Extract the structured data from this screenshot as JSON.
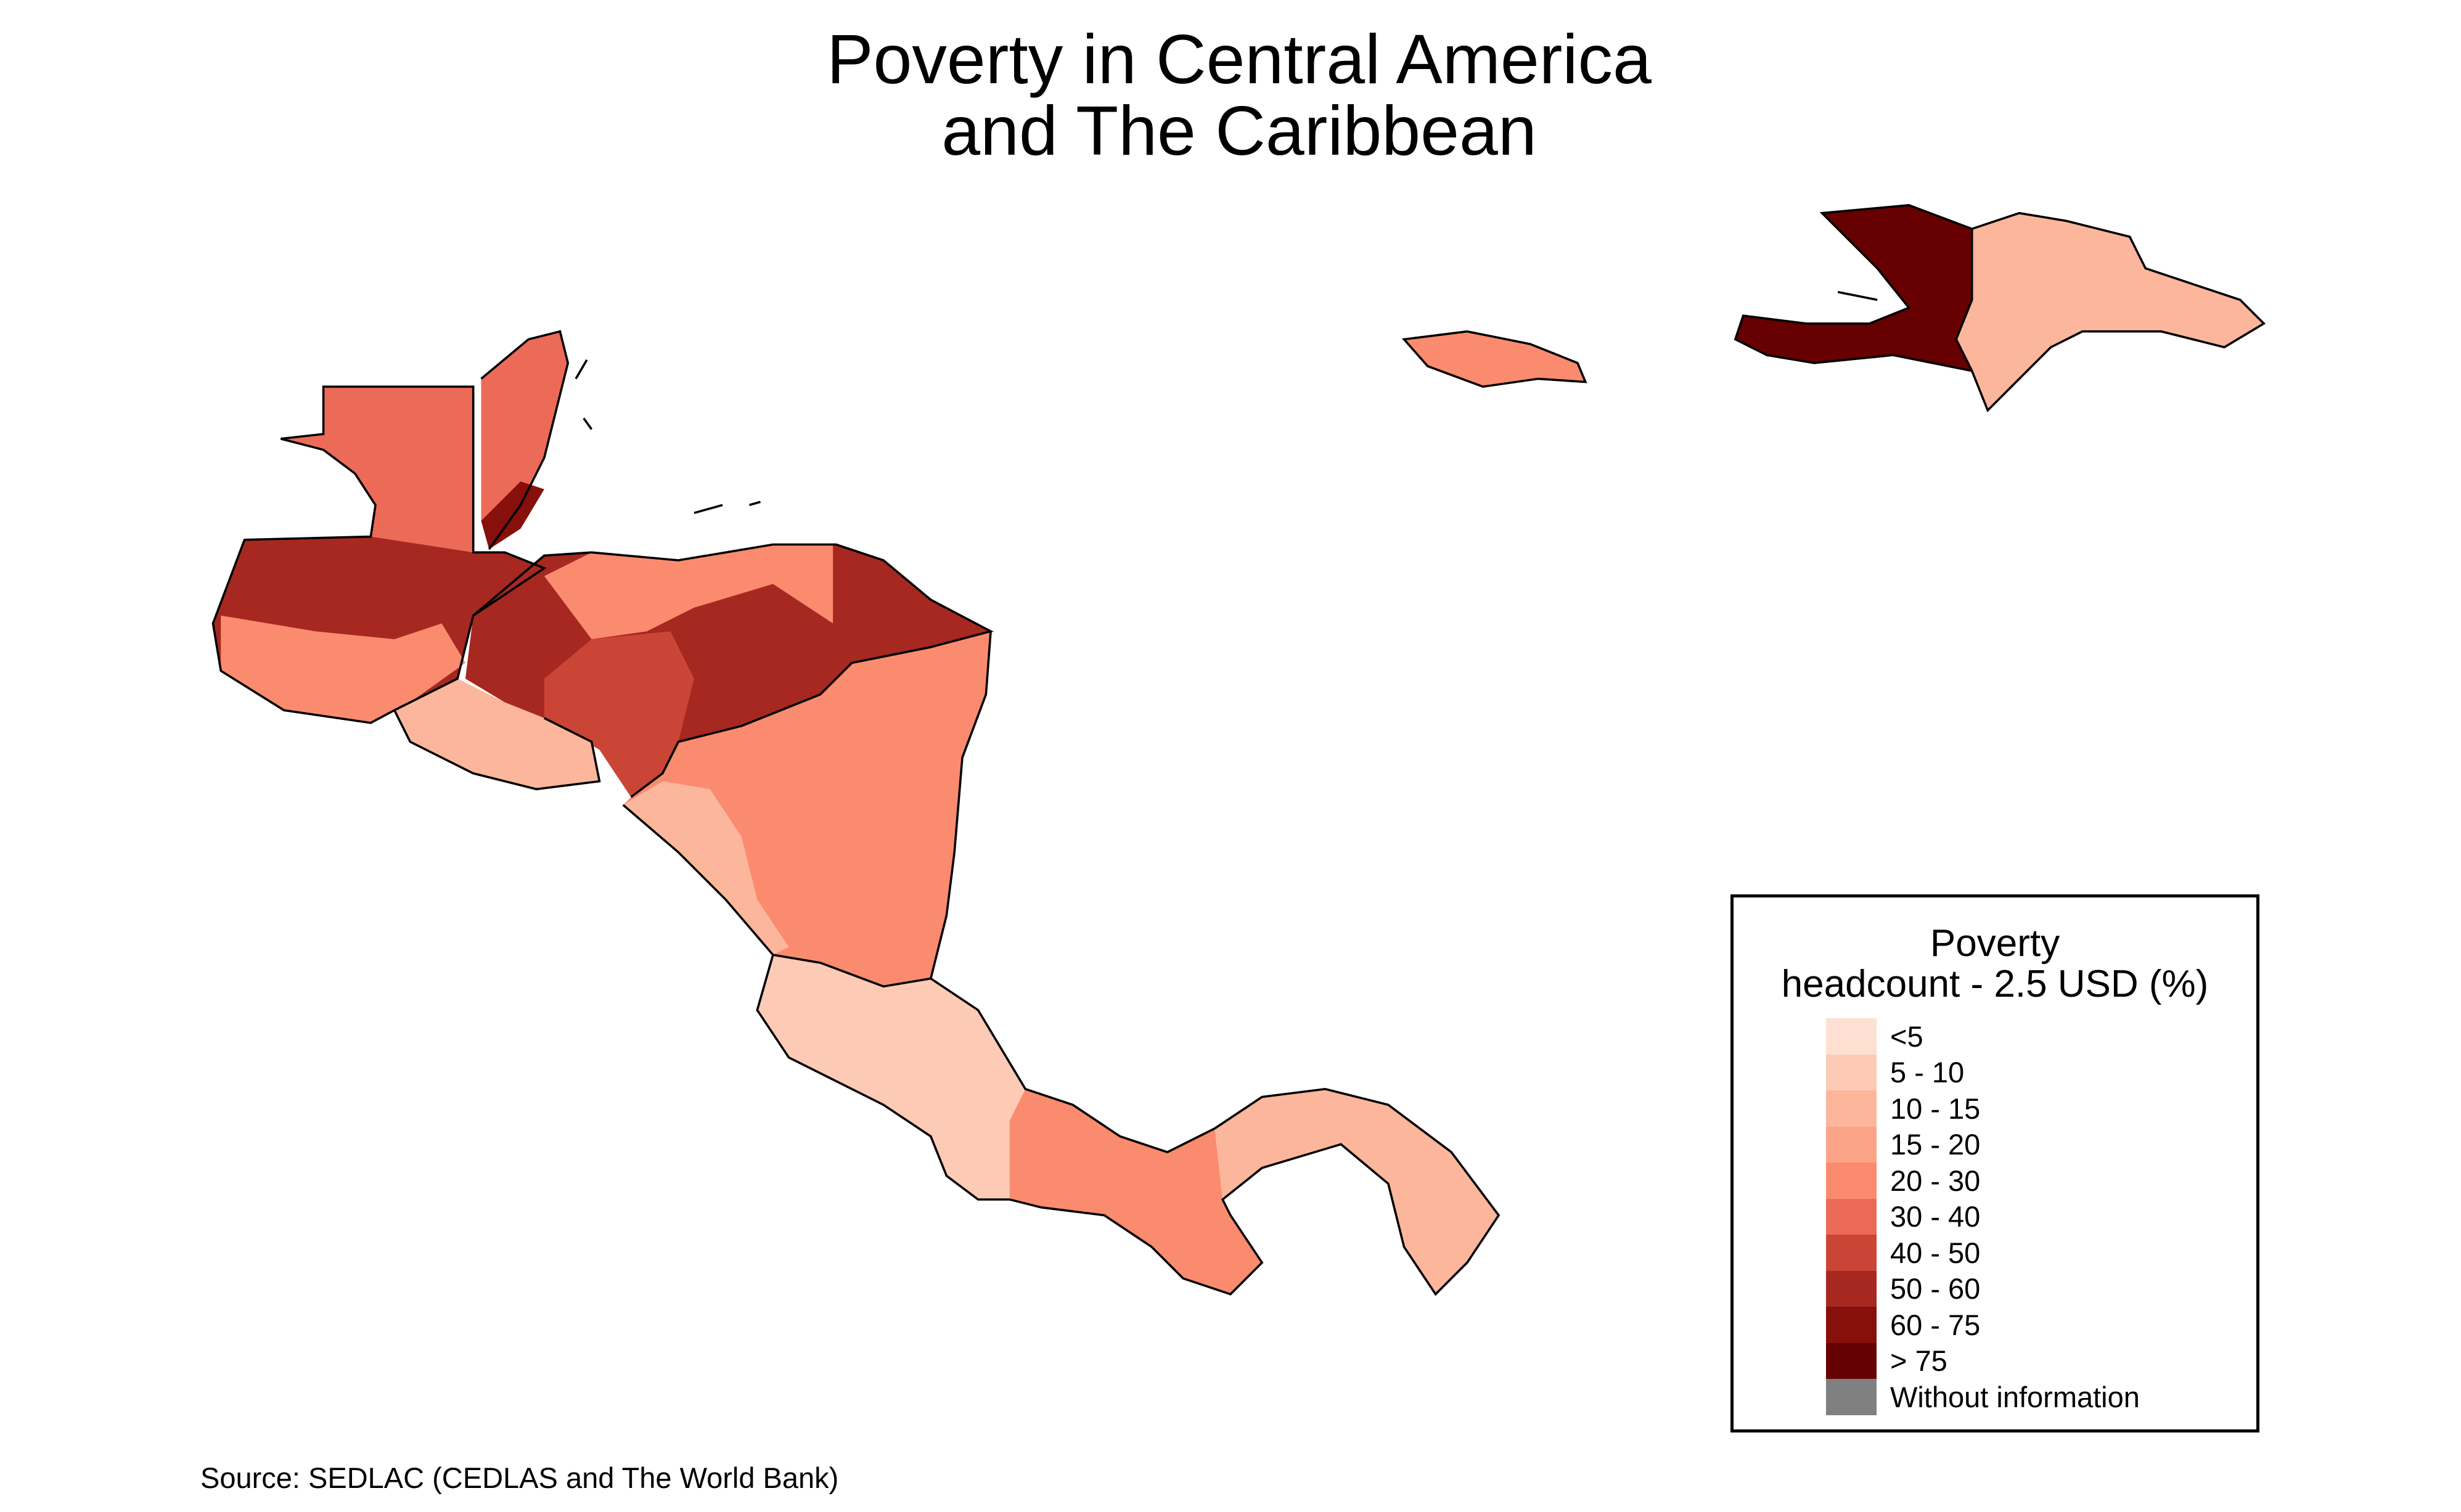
{
  "title_line1": "Poverty in Central America",
  "title_line2": "and The Caribbean",
  "source": "Source: SEDLAC (CEDLAS and The World Bank)",
  "chart_data": {
    "type": "heatmap",
    "title": "Poverty in Central America and The Caribbean",
    "legend": {
      "title_line1": "Poverty",
      "title_line2": "headcount - 2.5 USD (%)",
      "placement": "bottom-right",
      "classes": [
        {
          "label": "<5",
          "color": "#fee0d2"
        },
        {
          "label": "5 - 10",
          "color": "#fdcab5"
        },
        {
          "label": "10 - 15",
          "color": "#fcb69c"
        },
        {
          "label": "15 - 20",
          "color": "#fca488"
        },
        {
          "label": "20 - 30",
          "color": "#fb8b6e"
        },
        {
          "label": "30 - 40",
          "color": "#ec6b58"
        },
        {
          "label": "40 - 50",
          "color": "#cb4536"
        },
        {
          "label": "50 - 60",
          "color": "#a62820"
        },
        {
          "label": "60 - 75",
          "color": "#870f0c"
        },
        {
          "label": "> 75",
          "color": "#670000"
        },
        {
          "label": "Without information",
          "color": "#808080"
        }
      ]
    },
    "region_classes": {
      "r1": 5,
      "r2": 7,
      "r3": 5,
      "r4": 8,
      "r5": 7,
      "r6": 4,
      "r7": 2,
      "r8": 4,
      "r9": 2,
      "r10": 1,
      "r11": 4,
      "r12": 2,
      "r13": 4,
      "r14": 9,
      "r15": 2,
      "r16": 4,
      "r17": 6
    }
  }
}
